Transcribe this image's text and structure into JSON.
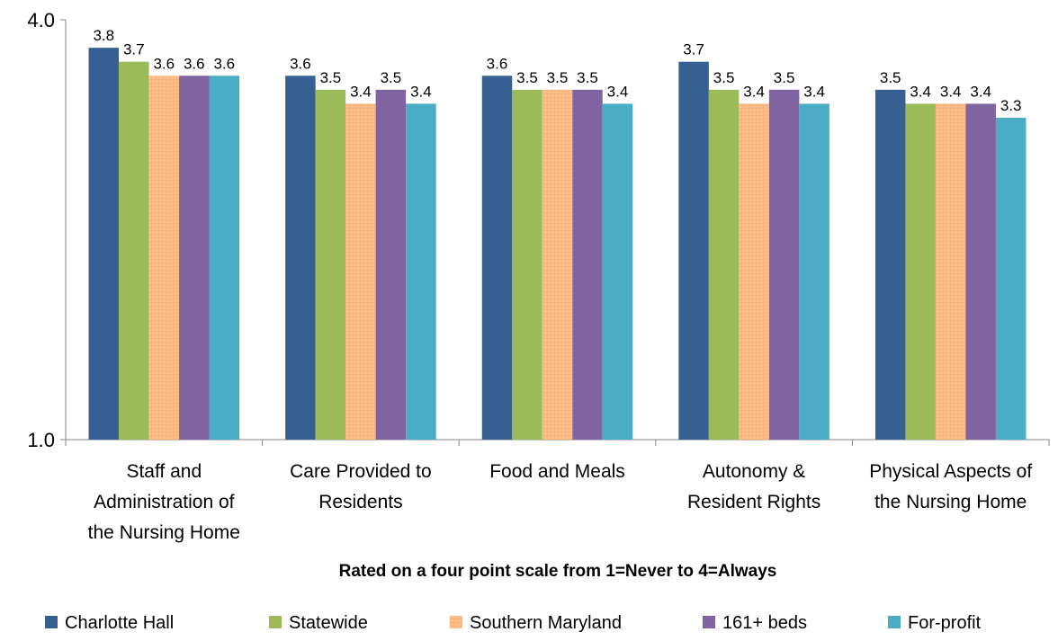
{
  "chart_data": {
    "type": "bar",
    "title": "",
    "xlabel": "Rated on a four point scale from 1=Never to 4=Always",
    "ylabel": "",
    "ylim": [
      1.0,
      4.0
    ],
    "ytick_labels": [
      "4.0",
      "1.0"
    ],
    "legend_position": "bottom",
    "grid": false,
    "categories": [
      [
        "Staff and",
        "Administration of",
        "the Nursing Home"
      ],
      [
        "Care Provided to",
        "Residents"
      ],
      [
        "Food and Meals"
      ],
      [
        "Autonomy &",
        "Resident Rights"
      ],
      [
        "Physical Aspects of",
        "the Nursing Home"
      ]
    ],
    "series": [
      {
        "name": "Charlotte Hall",
        "color": "#376092",
        "values": [
          3.8,
          3.6,
          3.6,
          3.7,
          3.5
        ]
      },
      {
        "name": "Statewide",
        "color": "#9BBB59",
        "values": [
          3.7,
          3.5,
          3.5,
          3.5,
          3.4
        ]
      },
      {
        "name": "Southern Maryland",
        "color": "#FAC090",
        "pattern": "grid",
        "values": [
          3.6,
          3.4,
          3.5,
          3.4,
          3.4
        ]
      },
      {
        "name": "161+ beds",
        "color": "#8064A2",
        "values": [
          3.6,
          3.5,
          3.5,
          3.5,
          3.4
        ]
      },
      {
        "name": "For-profit",
        "color": "#4BACC6",
        "values": [
          3.6,
          3.4,
          3.4,
          3.4,
          3.3
        ]
      }
    ]
  }
}
